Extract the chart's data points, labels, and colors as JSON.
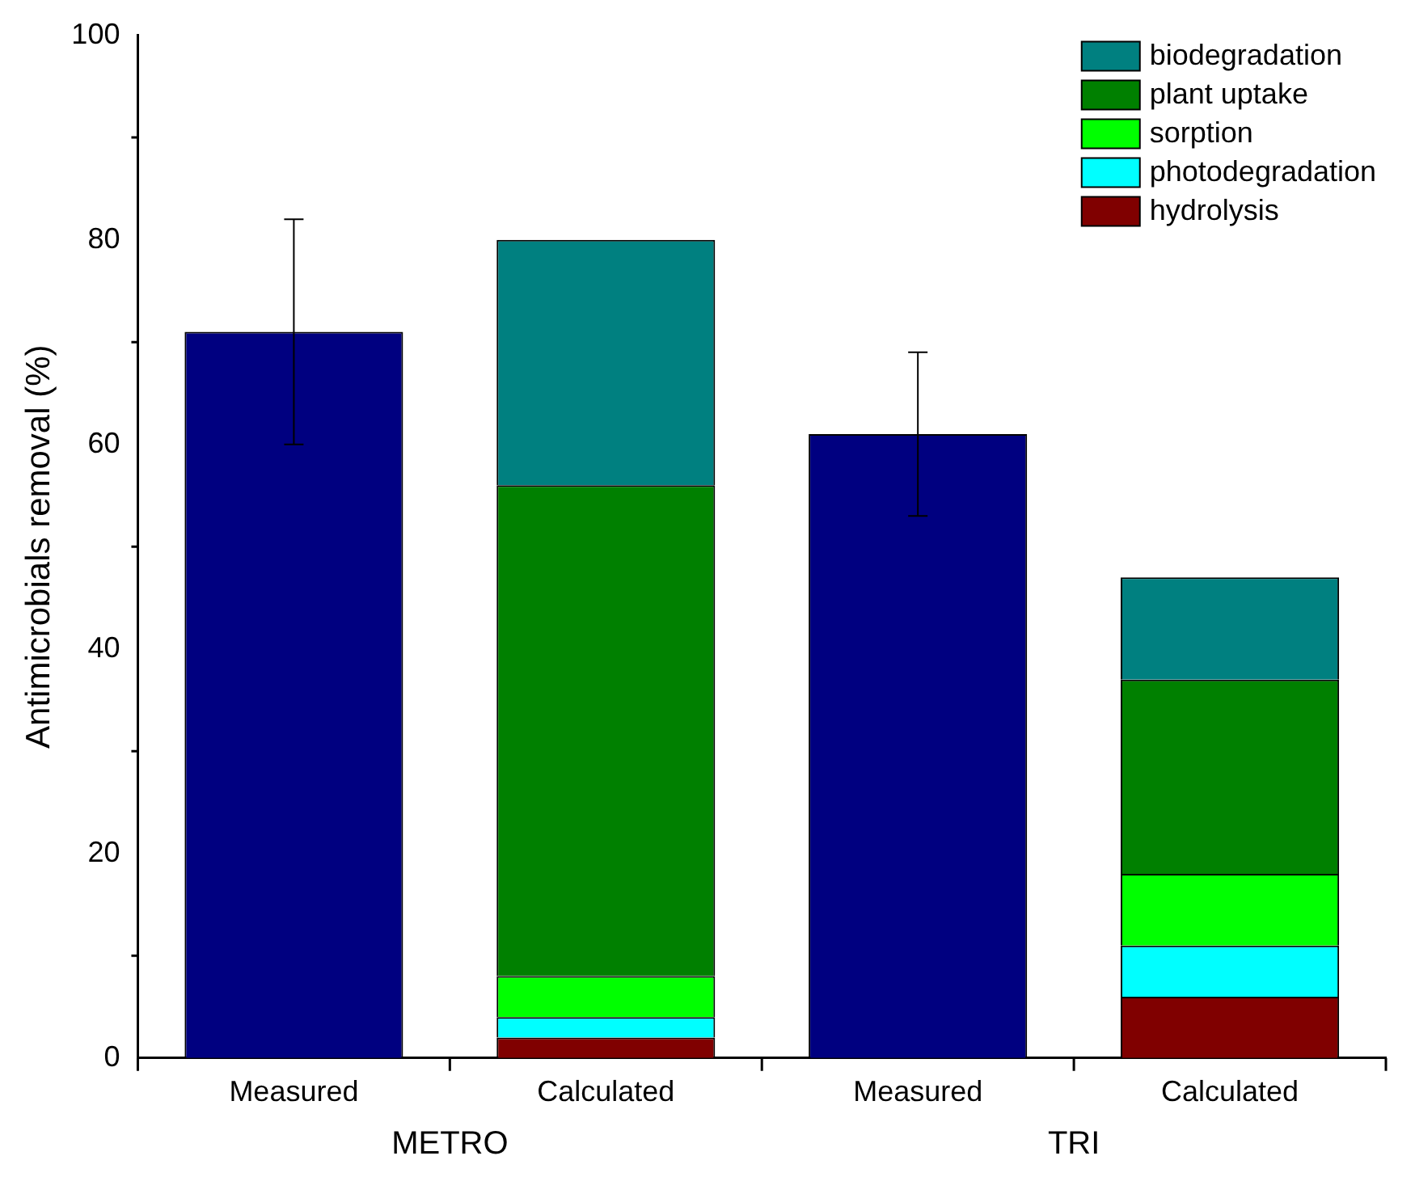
{
  "chart_data": {
    "type": "bar",
    "ylabel": "Antimicrobials removal (%)",
    "categories": [
      "Measured",
      "Calculated",
      "Measured",
      "Calculated"
    ],
    "series": [
      {
        "color": "#000080",
        "values": [
          71,
          null,
          61,
          null
        ],
        "errors": [
          11,
          null,
          8,
          null
        ]
      },
      {
        "name": "hydrolysis",
        "color": "#800000",
        "values": [
          null,
          2,
          null,
          6
        ]
      },
      {
        "name": "photodegradation",
        "color": "#00ffff",
        "values": [
          null,
          2,
          null,
          5
        ]
      },
      {
        "name": "sorption",
        "color": "#00ff00",
        "values": [
          null,
          4,
          null,
          7
        ]
      },
      {
        "name": "plant uptake",
        "color": "#008000",
        "values": [
          null,
          48,
          null,
          19
        ]
      },
      {
        "name": "biodegradation",
        "color": "#008080",
        "values": [
          null,
          24,
          null,
          10
        ]
      }
    ],
    "stacked": true,
    "ylim": [
      0,
      100
    ],
    "yticks": [
      0,
      20,
      40,
      60,
      80,
      100
    ],
    "grid": false,
    "legend": "top right",
    "annotations": [
      "METRO",
      "TRI"
    ]
  }
}
